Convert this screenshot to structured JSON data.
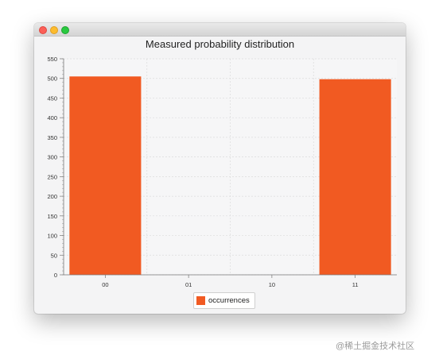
{
  "window": {
    "traffic_lights": [
      "close",
      "minimize",
      "maximize"
    ]
  },
  "chart_data": {
    "type": "bar",
    "title": "Measured probability distribution",
    "categories": [
      "00",
      "01",
      "10",
      "11"
    ],
    "series": [
      {
        "name": "occurrences",
        "values": [
          505,
          0,
          0,
          498
        ],
        "color": "#f15a22"
      }
    ],
    "ylim": [
      0,
      550
    ],
    "yticks": [
      0,
      50,
      100,
      150,
      200,
      250,
      300,
      350,
      400,
      450,
      500,
      550
    ],
    "grid": true,
    "legend": "bottom-center"
  },
  "watermark": "@稀土掘金技术社区"
}
